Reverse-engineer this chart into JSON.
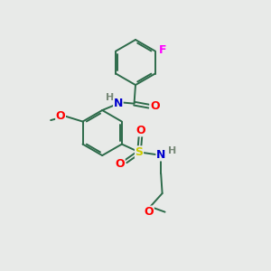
{
  "bg_color": "#e8eae8",
  "bond_color": "#2d6b4a",
  "bond_width": 1.4,
  "atom_colors": {
    "O": "#ff0000",
    "N": "#0000cc",
    "S": "#cccc00",
    "F": "#ff00ff",
    "H": "#778877",
    "C": "#2d6b4a"
  },
  "font_size": 8.5
}
